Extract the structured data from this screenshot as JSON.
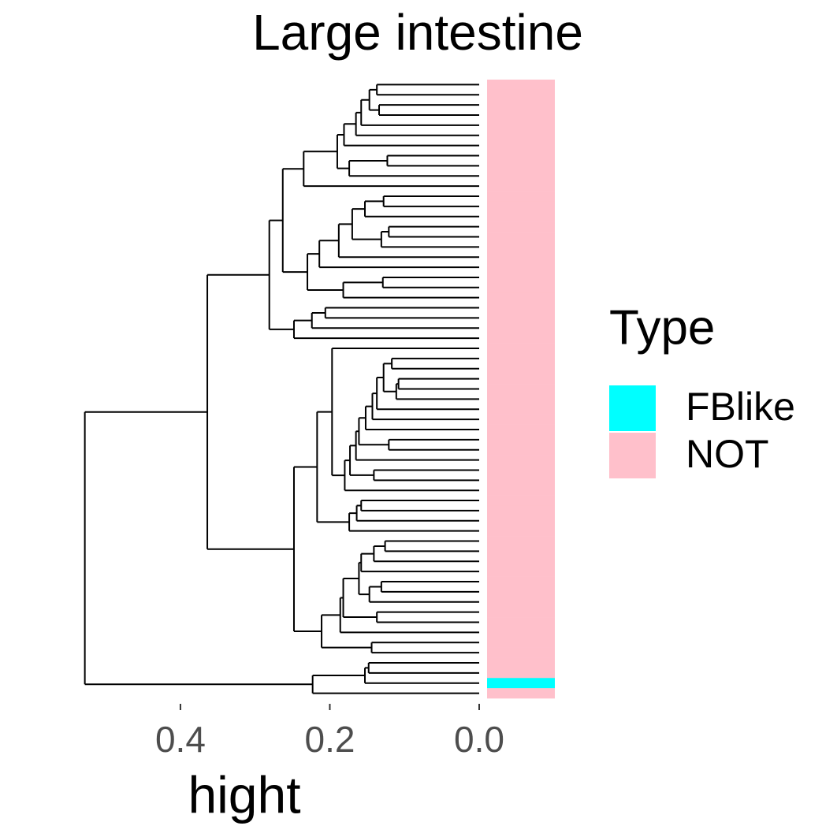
{
  "chart_data": {
    "type": "dendrogram",
    "title": "Large intestine",
    "x_label": "hight",
    "xlim": [
      0.554,
      0
    ],
    "xticks": [
      0.4,
      0.2,
      {
        "value": 0,
        "label": "0.0"
      }
    ],
    "legend": {
      "title": "Type",
      "position": "right",
      "entries": [
        {
          "name": "FBlike",
          "color": "#00ffff"
        },
        {
          "name": "NOT",
          "color": "#ffc0cb"
        }
      ]
    },
    "tree": {
      "height": 0.528,
      "children": [
        {
          "height": 0.364,
          "children": [
            {
              "height": 0.281,
              "children": [
                {
                  "height": 0.263,
                  "children": [
                    {
                      "height": 0.235,
                      "children": [
                        {
                          "height": 0.19,
                          "children": [
                            {
                              "height": 0.181,
                              "children": [
                                {
                                  "height": 0.165,
                                  "children": [
                                    {
                                      "height": 0.158,
                                      "children": [
                                        {
                                          "height": 0.147,
                                          "children": [
                                            {
                                              "height": 0.137,
                                              "children": [
                                                "NOT",
                                                "NOT"
                                              ]
                                            },
                                            {
                                              "height": 0.134,
                                              "children": [
                                                "NOT",
                                                "NOT"
                                              ]
                                            }
                                          ]
                                        },
                                        "NOT"
                                      ]
                                    },
                                    "NOT"
                                  ]
                                },
                                "NOT"
                              ]
                            },
                            {
                              "height": 0.174,
                              "children": [
                                {
                                  "height": 0.123,
                                  "children": [
                                    "NOT",
                                    "NOT"
                                  ]
                                },
                                "NOT"
                              ]
                            }
                          ]
                        },
                        "NOT"
                      ]
                    },
                    {
                      "height": 0.23,
                      "children": [
                        {
                          "height": 0.214,
                          "children": [
                            {
                              "height": 0.188,
                              "children": [
                                {
                                  "height": 0.17,
                                  "children": [
                                    {
                                      "height": 0.153,
                                      "children": [
                                        {
                                          "height": 0.128,
                                          "children": [
                                            "NOT",
                                            "NOT"
                                          ]
                                        },
                                        "NOT"
                                      ]
                                    },
                                    {
                                      "height": 0.131,
                                      "children": [
                                        {
                                          "height": 0.121,
                                          "children": [
                                            "NOT",
                                            "NOT"
                                          ]
                                        },
                                        "NOT"
                                      ]
                                    }
                                  ]
                                },
                                "NOT"
                              ]
                            },
                            "NOT"
                          ]
                        },
                        {
                          "height": 0.182,
                          "children": [
                            {
                              "height": 0.129,
                              "children": [
                                "NOT",
                                "NOT"
                              ]
                            },
                            "NOT"
                          ]
                        }
                      ]
                    }
                  ]
                },
                {
                  "height": 0.248,
                  "children": [
                    {
                      "height": 0.224,
                      "children": [
                        {
                          "height": 0.206,
                          "children": [
                            "NOT",
                            "NOT"
                          ]
                        },
                        "NOT"
                      ]
                    },
                    "NOT"
                  ]
                }
              ]
            },
            {
              "height": 0.248,
              "children": [
                {
                  "height": 0.217,
                  "children": [
                    {
                      "height": 0.197,
                      "children": [
                        "NOT",
                        {
                          "height": 0.18,
                          "children": [
                            {
                              "height": 0.173,
                              "children": [
                                {
                                  "height": 0.165,
                                  "children": [
                                    {
                                      "height": 0.161,
                                      "children": [
                                        {
                                          "height": 0.152,
                                          "children": [
                                            {
                                              "height": 0.143,
                                              "children": [
                                                {
                                                  "height": 0.137,
                                                  "children": [
                                                    {
                                                      "height": 0.128,
                                                      "children": [
                                                        {
                                                          "height": 0.117,
                                                          "children": [
                                                            "NOT",
                                                            "NOT"
                                                          ]
                                                        },
                                                        {
                                                          "height": 0.111,
                                                          "children": [
                                                            {
                                                              "height": 0.108,
                                                              "children": [
                                                                "NOT",
                                                                "NOT"
                                                              ]
                                                            },
                                                            "NOT"
                                                          ]
                                                        }
                                                      ]
                                                    },
                                                    "NOT"
                                                  ]
                                                },
                                                "NOT"
                                              ]
                                            },
                                            "NOT"
                                          ]
                                        },
                                        {
                                          "height": 0.121,
                                          "children": [
                                            "NOT",
                                            "NOT"
                                          ]
                                        }
                                      ]
                                    },
                                    "NOT"
                                  ]
                                },
                                {
                                  "height": 0.141,
                                  "children": [
                                    "NOT",
                                    "NOT"
                                  ]
                                }
                              ]
                            },
                            "NOT"
                          ]
                        }
                      ]
                    },
                    {
                      "height": 0.174,
                      "children": [
                        {
                          "height": 0.164,
                          "children": [
                            {
                              "height": 0.158,
                              "children": [
                                "NOT",
                                "NOT"
                              ]
                            },
                            "NOT"
                          ]
                        },
                        "NOT"
                      ]
                    }
                  ]
                },
                {
                  "height": 0.211,
                  "children": [
                    {
                      "height": 0.186,
                      "children": [
                        {
                          "height": 0.182,
                          "children": [
                            {
                              "height": 0.161,
                              "children": [
                                {
                                  "height": 0.158,
                                  "children": [
                                    {
                                      "height": 0.141,
                                      "children": [
                                        {
                                          "height": 0.126,
                                          "children": [
                                            "NOT",
                                            "NOT"
                                          ]
                                        },
                                        "NOT"
                                      ]
                                    },
                                    "NOT"
                                  ]
                                },
                                {
                                  "height": 0.147,
                                  "children": [
                                    {
                                      "height": 0.131,
                                      "children": [
                                        "NOT",
                                        "NOT"
                                      ]
                                    },
                                    "NOT"
                                  ]
                                }
                              ]
                            },
                            {
                              "height": 0.137,
                              "children": [
                                "NOT",
                                "NOT"
                              ]
                            }
                          ]
                        },
                        "NOT"
                      ]
                    },
                    {
                      "height": 0.144,
                      "children": [
                        "NOT",
                        "NOT"
                      ]
                    }
                  ]
                }
              ]
            }
          ]
        },
        {
          "height": 0.223,
          "children": [
            {
              "height": 0.153,
              "children": [
                {
                  "height": 0.148,
                  "children": [
                    "NOT",
                    "NOT"
                  ]
                },
                "FBlike"
              ]
            },
            "NOT"
          ]
        }
      ]
    }
  }
}
